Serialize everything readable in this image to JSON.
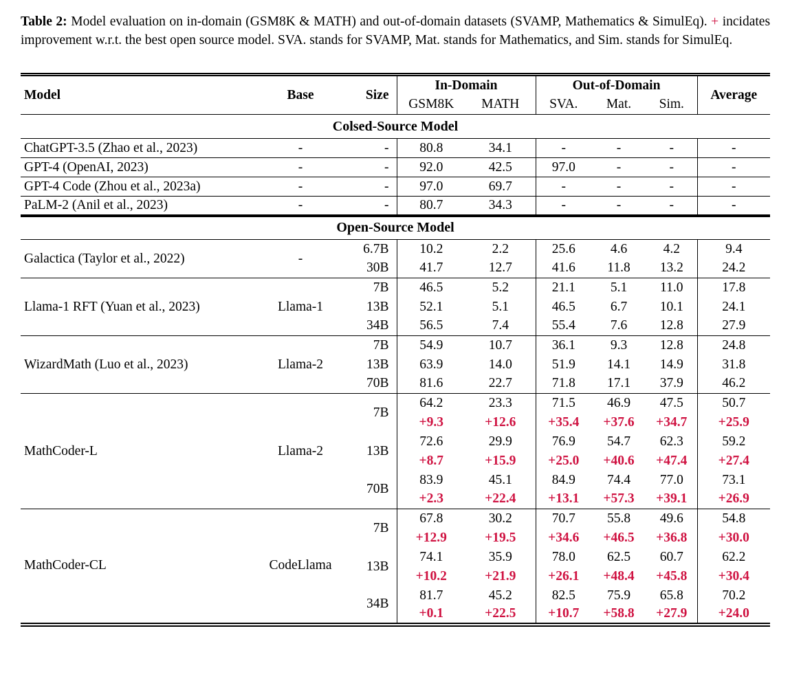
{
  "caption": {
    "label": "Table 2:",
    "text_before_plus": "Model evaluation on in-domain (GSM8K & MATH) and out-of-domain datasets (SVAMP, Mathematics & SimulEq).",
    "plus_sign": "+",
    "text_after_plus": "incidates improvement w.r.t. the best open source model. SVA. stands for SVAMP, Mat. stands for Mathematics, and Sim. stands for SimulEq."
  },
  "table": {
    "header": {
      "model": "Model",
      "base": "Base",
      "size": "Size",
      "in_domain": "In-Domain",
      "out_of_domain": "Out-of-Domain",
      "average": "Average",
      "sub_columns": [
        "GSM8K",
        "MATH",
        "SVA.",
        "Mat.",
        "Sim."
      ]
    },
    "sections": [
      {
        "title": "Colsed-Source Model",
        "blocks": [
          {
            "model": "ChatGPT-3.5 (Zhao et al., 2023)",
            "base": "-",
            "rows": [
              {
                "size": "-",
                "values": [
                  "80.8",
                  "34.1",
                  "-",
                  "-",
                  "-",
                  "-"
                ]
              }
            ]
          },
          {
            "model": "GPT-4 (OpenAI, 2023)",
            "base": "-",
            "rows": [
              {
                "size": "-",
                "values": [
                  "92.0",
                  "42.5",
                  "97.0",
                  "-",
                  "-",
                  "-"
                ]
              }
            ]
          },
          {
            "model": "GPT-4 Code (Zhou et al., 2023a)",
            "base": "-",
            "rows": [
              {
                "size": "-",
                "values": [
                  "97.0",
                  "69.7",
                  "-",
                  "-",
                  "-",
                  "-"
                ]
              }
            ]
          },
          {
            "model": "PaLM-2 (Anil et al., 2023)",
            "base": "-",
            "rows": [
              {
                "size": "-",
                "values": [
                  "80.7",
                  "34.3",
                  "-",
                  "-",
                  "-",
                  "-"
                ]
              }
            ]
          }
        ]
      },
      {
        "title": "Open-Source Model",
        "blocks": [
          {
            "model": "Galactica (Taylor et al., 2022)",
            "base": "-",
            "rows": [
              {
                "size": "6.7B",
                "values": [
                  "10.2",
                  "2.2",
                  "25.6",
                  "4.6",
                  "4.2",
                  "9.4"
                ]
              },
              {
                "size": "30B",
                "values": [
                  "41.7",
                  "12.7",
                  "41.6",
                  "11.8",
                  "13.2",
                  "24.2"
                ]
              }
            ]
          },
          {
            "model": "Llama-1 RFT (Yuan et al., 2023)",
            "base": "Llama-1",
            "rows": [
              {
                "size": "7B",
                "values": [
                  "46.5",
                  "5.2",
                  "21.1",
                  "5.1",
                  "11.0",
                  "17.8"
                ]
              },
              {
                "size": "13B",
                "values": [
                  "52.1",
                  "5.1",
                  "46.5",
                  "6.7",
                  "10.1",
                  "24.1"
                ]
              },
              {
                "size": "34B",
                "values": [
                  "56.5",
                  "7.4",
                  "55.4",
                  "7.6",
                  "12.8",
                  "27.9"
                ]
              }
            ]
          },
          {
            "model": "WizardMath (Luo et al., 2023)",
            "base": "Llama-2",
            "rows": [
              {
                "size": "7B",
                "values": [
                  "54.9",
                  "10.7",
                  "36.1",
                  "9.3",
                  "12.8",
                  "24.8"
                ]
              },
              {
                "size": "13B",
                "values": [
                  "63.9",
                  "14.0",
                  "51.9",
                  "14.1",
                  "14.9",
                  "31.8"
                ]
              },
              {
                "size": "70B",
                "values": [
                  "81.6",
                  "22.7",
                  "71.8",
                  "17.1",
                  "37.9",
                  "46.2"
                ]
              }
            ]
          },
          {
            "model": "MathCoder-L",
            "base": "Llama-2",
            "rows": [
              {
                "size": "7B",
                "values": [
                  "64.2",
                  "23.3",
                  "71.5",
                  "46.9",
                  "47.5",
                  "50.7"
                ],
                "deltas": [
                  "+9.3",
                  "+12.6",
                  "+35.4",
                  "+37.6",
                  "+34.7",
                  "+25.9"
                ]
              },
              {
                "size": "13B",
                "values": [
                  "72.6",
                  "29.9",
                  "76.9",
                  "54.7",
                  "62.3",
                  "59.2"
                ],
                "deltas": [
                  "+8.7",
                  "+15.9",
                  "+25.0",
                  "+40.6",
                  "+47.4",
                  "+27.4"
                ]
              },
              {
                "size": "70B",
                "values": [
                  "83.9",
                  "45.1",
                  "84.9",
                  "74.4",
                  "77.0",
                  "73.1"
                ],
                "deltas": [
                  "+2.3",
                  "+22.4",
                  "+13.1",
                  "+57.3",
                  "+39.1",
                  "+26.9"
                ]
              }
            ]
          },
          {
            "model": "MathCoder-CL",
            "base": "CodeLlama",
            "rows": [
              {
                "size": "7B",
                "values": [
                  "67.8",
                  "30.2",
                  "70.7",
                  "55.8",
                  "49.6",
                  "54.8"
                ],
                "deltas": [
                  "+12.9",
                  "+19.5",
                  "+34.6",
                  "+46.5",
                  "+36.8",
                  "+30.0"
                ]
              },
              {
                "size": "13B",
                "values": [
                  "74.1",
                  "35.9",
                  "78.0",
                  "62.5",
                  "60.7",
                  "62.2"
                ],
                "deltas": [
                  "+10.2",
                  "+21.9",
                  "+26.1",
                  "+48.4",
                  "+45.8",
                  "+30.4"
                ]
              },
              {
                "size": "34B",
                "values": [
                  "81.7",
                  "45.2",
                  "82.5",
                  "75.9",
                  "65.8",
                  "70.2"
                ],
                "deltas": [
                  "+0.1",
                  "+22.5",
                  "+10.7",
                  "+58.8",
                  "+27.9",
                  "+24.0"
                ]
              }
            ]
          }
        ]
      }
    ]
  },
  "colors": {
    "delta_red": "#cf1241",
    "text": "#000000",
    "rule": "#000000"
  }
}
